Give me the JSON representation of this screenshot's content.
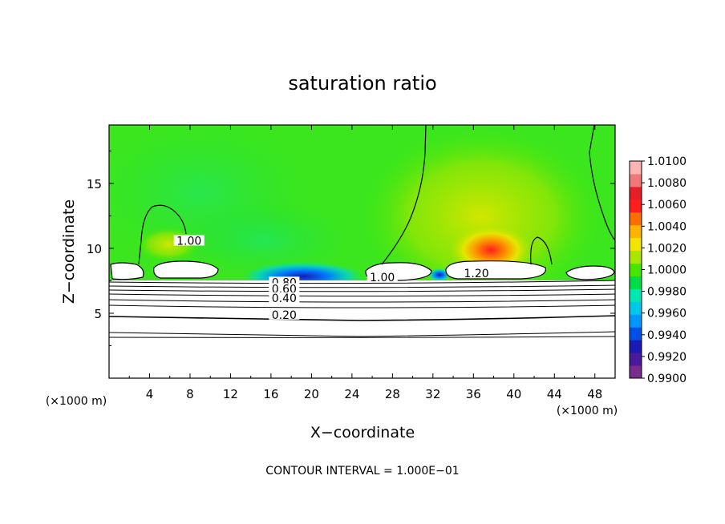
{
  "chart_data": {
    "type": "heatmap",
    "title": "saturation ratio",
    "xlabel": "X−coordinate",
    "ylabel": "Z−coordinate",
    "x_unit": "(×1000 m)",
    "y_unit": "(×1000 m)",
    "xlim": [
      0,
      50
    ],
    "ylim": [
      0,
      19.5
    ],
    "x_ticks": [
      4,
      8,
      12,
      16,
      20,
      24,
      28,
      32,
      36,
      40,
      44,
      48
    ],
    "y_ticks": [
      5,
      10,
      15
    ],
    "footer": "CONTOUR INTERVAL = 1.000E−01",
    "colorbar": {
      "min": 0.99,
      "max": 1.01,
      "labels": [
        "1.0100",
        "1.0080",
        "1.0060",
        "1.0040",
        "1.0020",
        "1.0000",
        "0.9980",
        "0.9960",
        "0.9940",
        "0.9920",
        "0.9900"
      ],
      "colors": [
        "#7a2c8c",
        "#4b1a9a",
        "#1a1ab4",
        "#0050e6",
        "#0096ff",
        "#00c8e6",
        "#00e6b4",
        "#00dc46",
        "#46e600",
        "#aae600",
        "#f0e600",
        "#ffb400",
        "#ff6e00",
        "#ff1e1e",
        "#e61e28",
        "#f07878",
        "#ffb4b4"
      ]
    },
    "contour_labels": [
      {
        "text": "1.00",
        "x": 7.9,
        "y": 10.4
      },
      {
        "text": "1.00",
        "x": 27,
        "y": 7.6
      },
      {
        "text": "1.20",
        "x": 36.3,
        "y": 7.9
      },
      {
        "text": "0.80",
        "x": 17.3,
        "y": 7.2
      },
      {
        "text": "0.60",
        "x": 17.3,
        "y": 6.7
      },
      {
        "text": "0.40",
        "x": 17.3,
        "y": 6.0
      },
      {
        "text": "0.20",
        "x": 17.3,
        "y": 4.7
      }
    ]
  }
}
